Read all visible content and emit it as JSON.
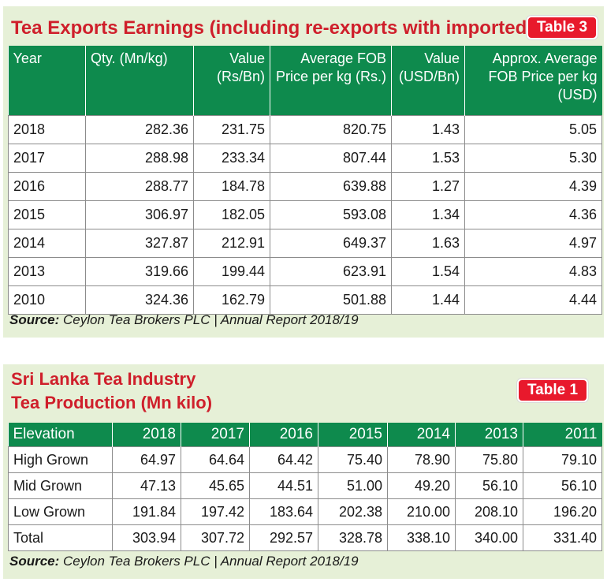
{
  "colors": {
    "green_header": "#0e8a4d",
    "title_red": "#cf1f2b",
    "badge_red": "#e8192c",
    "panel_bg": "#e6f0d7"
  },
  "table3": {
    "title": "Tea Exports Earnings (including re-exports with imported tea)",
    "badge": "Table 3",
    "headers": [
      "Year",
      "Qty. (Mn/kg)",
      "Value (Rs/Bn)",
      "Average FOB Price per kg (Rs.)",
      "Value (USD/Bn)",
      "Approx. Average FOB Price per kg (USD)"
    ],
    "rows": [
      [
        "2018",
        "282.36",
        "231.75",
        "820.75",
        "1.43",
        "5.05"
      ],
      [
        "2017",
        "288.98",
        "233.34",
        "807.44",
        "1.53",
        "5.30"
      ],
      [
        "2016",
        "288.77",
        "184.78",
        "639.88",
        "1.27",
        "4.39"
      ],
      [
        "2015",
        "306.97",
        "182.05",
        "593.08",
        "1.34",
        "4.36"
      ],
      [
        "2014",
        "327.87",
        "212.91",
        "649.37",
        "1.63",
        "4.97"
      ],
      [
        "2013",
        "319.66",
        "199.44",
        "623.91",
        "1.54",
        "4.83"
      ],
      [
        "2010",
        "324.36",
        "162.79",
        "501.88",
        "1.44",
        "4.44"
      ]
    ],
    "source_label": "Source:",
    "source_text": "Ceylon Tea Brokers PLC | Annual Report 2018/19"
  },
  "table1": {
    "title_line1": "Sri Lanka Tea Industry",
    "title_line2": "Tea Production (Mn kilo)",
    "badge": "Table 1",
    "headers": [
      "Elevation",
      "2018",
      "2017",
      "2016",
      "2015",
      "2014",
      "2013",
      "2011"
    ],
    "rows": [
      [
        "High Grown",
        "64.97",
        "64.64",
        "64.42",
        "75.40",
        "78.90",
        "75.80",
        "79.10"
      ],
      [
        "Mid Grown",
        "47.13",
        "45.65",
        "44.51",
        "51.00",
        "49.20",
        "56.10",
        "56.10"
      ],
      [
        "Low Grown",
        "191.84",
        "197.42",
        "183.64",
        "202.38",
        "210.00",
        "208.10",
        "196.20"
      ],
      [
        "Total",
        "303.94",
        "307.72",
        "292.57",
        "328.78",
        "338.10",
        "340.00",
        "331.40"
      ]
    ],
    "source_label": "Source:",
    "source_text": "Ceylon Tea Brokers PLC | Annual Report 2018/19"
  }
}
